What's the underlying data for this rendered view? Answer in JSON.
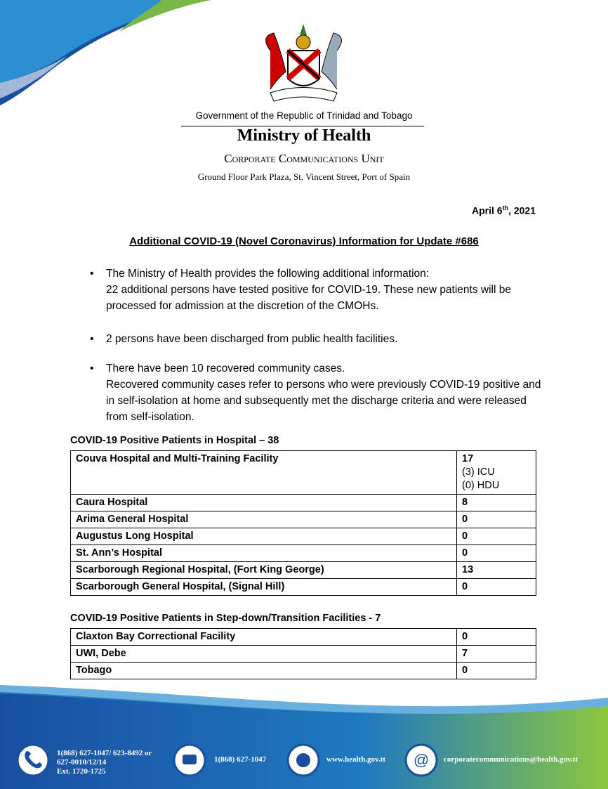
{
  "header": {
    "government": "Government of the Republic of Trinidad and Tobago",
    "ministry": "Ministry of Health",
    "unit": "Corporate Communications Unit",
    "address": "Ground Floor Park Plaza, St. Vincent Street, Port of Spain"
  },
  "date": {
    "day": "April 6",
    "suffix": "th",
    "year": ", 2021"
  },
  "title": "Additional COVID-19 (Novel Coronavirus) Information for Update #686",
  "bullets": [
    {
      "lead": "The Ministry of Health provides the following additional information:",
      "detail": "22 additional persons have tested positive for COVID-19. These new patients will be processed for admission at the discretion of the CMOHs."
    },
    {
      "lead": "2 persons have been discharged from public health facilities."
    },
    {
      "lead": "There have been 10 recovered community cases.",
      "detail": "Recovered community cases refer to persons who were previously COVID-19 positive and in self-isolation at home and subsequently met the discharge criteria and were released from self-isolation."
    }
  ],
  "hospital_table": {
    "title": "COVID-19 Positive Patients in Hospital – 38",
    "rows": [
      {
        "name": "Couva Hospital and Multi-Training Facility",
        "value": 17,
        "notes": [
          "(3) ICU",
          "(0) HDU"
        ]
      },
      {
        "name": "Caura Hospital",
        "value": 8
      },
      {
        "name": "Arima General Hospital",
        "value": 0
      },
      {
        "name": "Augustus Long Hospital",
        "value": 0
      },
      {
        "name": "St. Ann’s Hospital",
        "value": 0
      },
      {
        "name": "Scarborough Regional Hospital, (Fort King George)",
        "value": 13
      },
      {
        "name": "Scarborough General Hospital, (Signal Hill)",
        "value": 0
      }
    ]
  },
  "stepdown_table": {
    "title": "COVID-19 Positive Patients in Step-down/Transition Facilities - 7",
    "rows": [
      {
        "name": "Claxton Bay Correctional Facility",
        "value": 0
      },
      {
        "name": "UWI, Debe",
        "value": 7
      },
      {
        "name": "Tobago",
        "value": 0
      }
    ]
  },
  "footer": {
    "phone": [
      "1(868) 627-1047/ 623-8492 or",
      "627-0010/12/14",
      "Ext. 1720-1725"
    ],
    "fax": "1(868) 627-1047",
    "web": "www.health.gov.tt",
    "email": "corporatecommunications@health.gov.tt"
  }
}
